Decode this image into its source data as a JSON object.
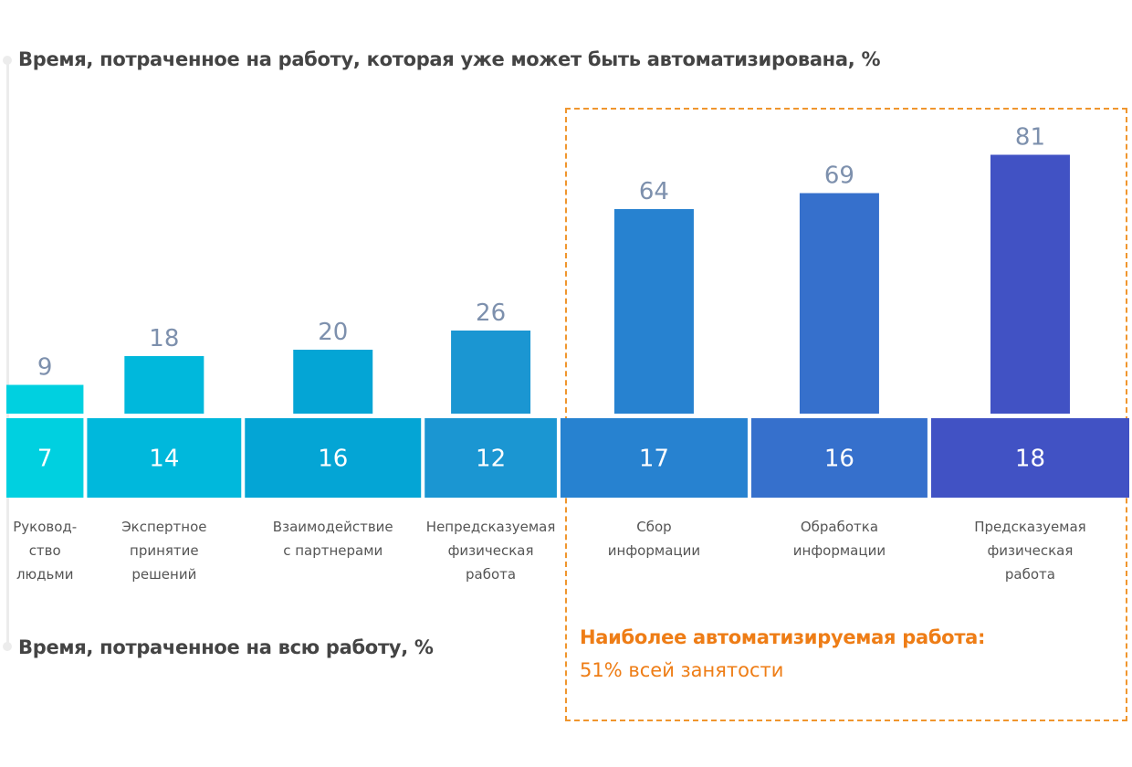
{
  "chart_data": {
    "type": "bar",
    "title": "Время, потраченное на работу, которая уже может быть автоматизирована, %",
    "bottom_title": "Время, потраченное на всю работу, %",
    "categories": [
      [
        "Руковод-",
        "ство",
        "людьми"
      ],
      [
        "Экспертное",
        "принятие",
        "решений"
      ],
      [
        "Взаимодействие",
        "с партнерами"
      ],
      [
        "Непредсказуемая",
        "физическая",
        "работа"
      ],
      [
        "Сбор",
        "информации"
      ],
      [
        "Обработка",
        "информации"
      ],
      [
        "Предсказуемая",
        "физическая",
        "работа"
      ]
    ],
    "series": [
      {
        "name": "Время, потраченное на работу, которая уже может быть автоматизирована, %",
        "values": [
          9,
          18,
          20,
          26,
          64,
          69,
          81
        ]
      },
      {
        "name": "Время, потраченное на всю работу, %",
        "values": [
          7,
          14,
          16,
          12,
          17,
          16,
          18
        ]
      }
    ],
    "colors": [
      "#00d0e0",
      "#00b8dc",
      "#04a5d5",
      "#1b96d2",
      "#2782d0",
      "#3670cc",
      "#4152c4"
    ],
    "grid": false,
    "highlight": {
      "categories_range": [
        4,
        6
      ],
      "title": "Наиболее автоматизируемая работа:",
      "subtitle": "51% всей занятости",
      "color": "#f0962e"
    }
  }
}
